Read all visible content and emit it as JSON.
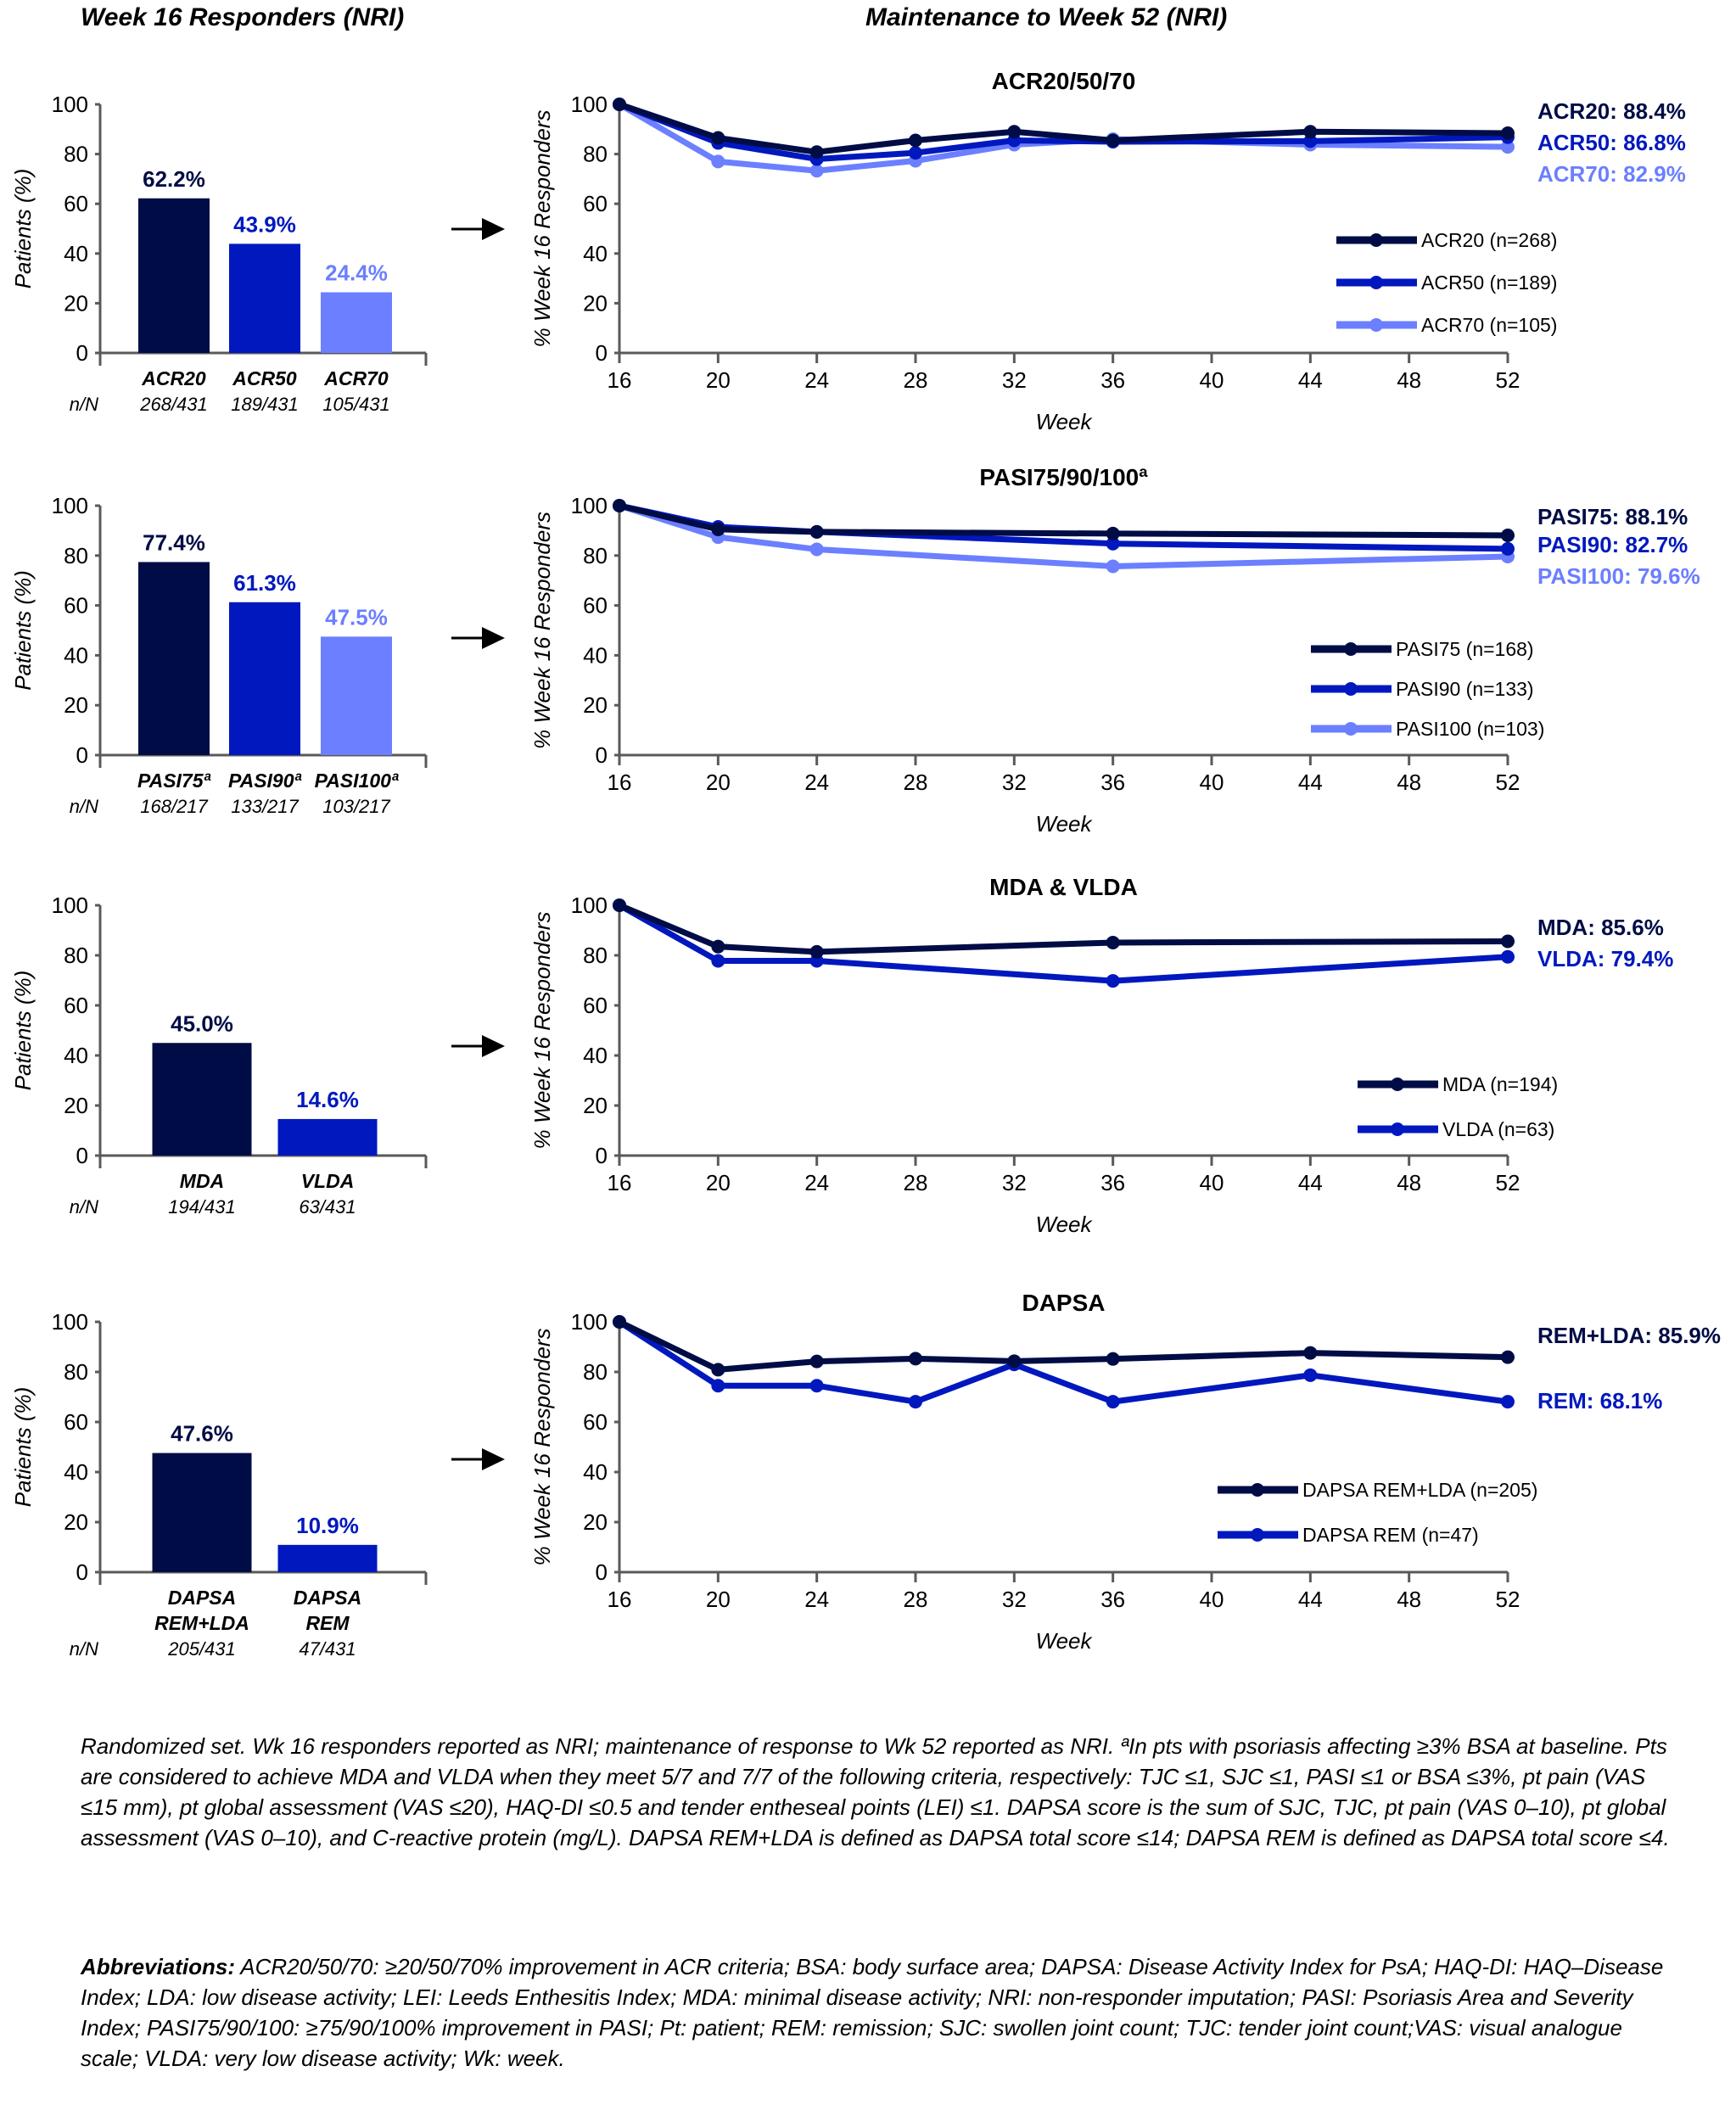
{
  "headers": {
    "left": "Week 16 Responders (NRI)",
    "right": "Maintenance to Week 52 (NRI)"
  },
  "colors": {
    "dark": "#000c45",
    "mid": "#0018be",
    "light": "#6b7fff",
    "axis": "#595959"
  },
  "chart_data": [
    {
      "type": "bar",
      "id": "bar-acr",
      "ylabel": "Patients (%)",
      "ylim": [
        0,
        100
      ],
      "yticks": [
        0,
        20,
        40,
        60,
        80,
        100
      ],
      "nN_label": "n/N",
      "categories": [
        [
          "ACR20"
        ],
        [
          "ACR50"
        ],
        [
          "ACR70"
        ]
      ],
      "values": [
        62.2,
        43.9,
        24.4
      ],
      "value_labels": [
        "62.2%",
        "43.9%",
        "24.4%"
      ],
      "nN": [
        "268/431",
        "189/431",
        "105/431"
      ],
      "color_keys": [
        "dark",
        "mid",
        "light"
      ]
    },
    {
      "type": "line",
      "id": "line-acr",
      "title": "ACR20/50/70",
      "xlabel": "Week",
      "ylabel": "% Week 16 Responders",
      "xlim": [
        16,
        52
      ],
      "ylim": [
        0,
        100
      ],
      "xticks": [
        16,
        20,
        24,
        28,
        32,
        36,
        40,
        44,
        48,
        52
      ],
      "yticks": [
        0,
        20,
        40,
        60,
        80,
        100
      ],
      "series": [
        {
          "name": "ACR20 (n=268)",
          "color_key": "dark",
          "end_label": "ACR20: 88.4%",
          "x": [
            16,
            20,
            24,
            28,
            32,
            36,
            44,
            52
          ],
          "y": [
            100,
            86.5,
            80.8,
            85.5,
            89,
            85.5,
            89,
            88.4
          ]
        },
        {
          "name": "ACR50 (n=189)",
          "color_key": "mid",
          "end_label": "ACR50: 86.8%",
          "x": [
            16,
            20,
            24,
            28,
            32,
            36,
            44,
            52
          ],
          "y": [
            100,
            84.5,
            78,
            80.5,
            85.5,
            85,
            85.2,
            86.8
          ]
        },
        {
          "name": "ACR70 (n=105)",
          "color_key": "light",
          "end_label": "ACR70: 82.9%",
          "x": [
            16,
            20,
            24,
            28,
            32,
            36,
            44,
            52
          ],
          "y": [
            100,
            77,
            73.3,
            77.3,
            83.8,
            86,
            83.8,
            82.9
          ]
        }
      ],
      "legend": "center-right"
    },
    {
      "type": "bar",
      "id": "bar-pasi",
      "ylabel": "Patients (%)",
      "ylim": [
        0,
        100
      ],
      "yticks": [
        0,
        20,
        40,
        60,
        80,
        100
      ],
      "nN_label": "n/N",
      "categories": [
        [
          "PASI75ª"
        ],
        [
          "PASI90ª"
        ],
        [
          "PASI100ª"
        ]
      ],
      "values": [
        77.4,
        61.3,
        47.5
      ],
      "value_labels": [
        "77.4%",
        "61.3%",
        "47.5%"
      ],
      "nN": [
        "168/217",
        "133/217",
        "103/217"
      ],
      "color_keys": [
        "dark",
        "mid",
        "light"
      ]
    },
    {
      "type": "line",
      "id": "line-pasi",
      "title": "PASI75/90/100ª",
      "xlabel": "Week",
      "ylabel": "% Week 16 Responders",
      "xlim": [
        16,
        52
      ],
      "ylim": [
        0,
        100
      ],
      "xticks": [
        16,
        20,
        24,
        28,
        32,
        36,
        40,
        44,
        48,
        52
      ],
      "yticks": [
        0,
        20,
        40,
        60,
        80,
        100
      ],
      "series": [
        {
          "name": "PASI75 (n=168)",
          "color_key": "dark",
          "end_label": "PASI75: 88.1%",
          "x": [
            16,
            20,
            24,
            36,
            52
          ],
          "y": [
            100,
            90.5,
            89.5,
            88.8,
            88.1
          ]
        },
        {
          "name": "PASI90 (n=133)",
          "color_key": "mid",
          "end_label": "PASI90: 82.7%",
          "x": [
            16,
            20,
            24,
            36,
            52
          ],
          "y": [
            100,
            91.5,
            89.5,
            84.8,
            82.7
          ]
        },
        {
          "name": "PASI100 (n=103)",
          "color_key": "light",
          "end_label": "PASI100: 79.6%",
          "x": [
            16,
            20,
            24,
            36,
            52
          ],
          "y": [
            100,
            87.4,
            82.5,
            75.7,
            79.6
          ]
        }
      ],
      "legend": "center-right"
    },
    {
      "type": "bar",
      "id": "bar-mda",
      "ylabel": "Patients (%)",
      "ylim": [
        0,
        100
      ],
      "yticks": [
        0,
        20,
        40,
        60,
        80,
        100
      ],
      "nN_label": "n/N",
      "categories": [
        [
          "MDA"
        ],
        [
          "VLDA"
        ]
      ],
      "values": [
        45.0,
        14.6
      ],
      "value_labels": [
        "45.0%",
        "14.6%"
      ],
      "nN": [
        "194/431",
        "63/431"
      ],
      "color_keys": [
        "dark",
        "mid"
      ]
    },
    {
      "type": "line",
      "id": "line-mda",
      "title": "MDA & VLDA",
      "xlabel": "Week",
      "ylabel": "% Week 16 Responders",
      "xlim": [
        16,
        52
      ],
      "ylim": [
        0,
        100
      ],
      "xticks": [
        16,
        20,
        24,
        28,
        32,
        36,
        40,
        44,
        48,
        52
      ],
      "yticks": [
        0,
        20,
        40,
        60,
        80,
        100
      ],
      "series": [
        {
          "name": "MDA (n=194)",
          "color_key": "dark",
          "end_label": "MDA: 85.6%",
          "x": [
            16,
            20,
            24,
            36,
            52
          ],
          "y": [
            100,
            83.5,
            81.4,
            85.1,
            85.6
          ]
        },
        {
          "name": "VLDA (n=63)",
          "color_key": "mid",
          "end_label": "VLDA: 79.4%",
          "x": [
            16,
            20,
            24,
            36,
            52
          ],
          "y": [
            100,
            77.8,
            77.8,
            69.8,
            79.4
          ]
        }
      ],
      "legend": "center-right"
    },
    {
      "type": "bar",
      "id": "bar-dapsa",
      "ylabel": "Patients (%)",
      "ylim": [
        0,
        100
      ],
      "yticks": [
        0,
        20,
        40,
        60,
        80,
        100
      ],
      "nN_label": "n/N",
      "categories": [
        [
          "DAPSA",
          "REM+LDA"
        ],
        [
          "DAPSA",
          "REM"
        ]
      ],
      "values": [
        47.6,
        10.9
      ],
      "value_labels": [
        "47.6%",
        "10.9%"
      ],
      "nN": [
        "205/431",
        "47/431"
      ],
      "color_keys": [
        "dark",
        "mid"
      ]
    },
    {
      "type": "line",
      "id": "line-dapsa",
      "title": "DAPSA",
      "xlabel": "Week",
      "ylabel": "% Week 16 Responders",
      "xlim": [
        16,
        52
      ],
      "ylim": [
        0,
        100
      ],
      "xticks": [
        16,
        20,
        24,
        28,
        32,
        36,
        40,
        44,
        48,
        52
      ],
      "yticks": [
        0,
        20,
        40,
        60,
        80,
        100
      ],
      "series": [
        {
          "name": "DAPSA REM+LDA (n=205)",
          "color_key": "dark",
          "end_label": "REM+LDA: 85.9%",
          "x": [
            16,
            20,
            24,
            28,
            32,
            36,
            44,
            52
          ],
          "y": [
            100,
            80.9,
            84.2,
            85.3,
            84.3,
            85.2,
            87.6,
            85.9
          ]
        },
        {
          "name": "DAPSA REM (n=47)",
          "color_key": "mid",
          "end_label": "REM: 68.1%",
          "x": [
            16,
            20,
            24,
            28,
            32,
            36,
            44,
            52
          ],
          "y": [
            100,
            74.5,
            74.5,
            68.1,
            83,
            68.1,
            78.7,
            68.1
          ]
        }
      ],
      "legend": "center-right"
    }
  ],
  "footnote": "Randomized set. Wk 16 responders reported as NRI; maintenance of response to Wk 52 reported as NRI. ªIn pts with psoriasis affecting ≥3% BSA at baseline. Pts are considered to achieve MDA and VLDA when they meet 5/7 and 7/7 of the following criteria, respectively: TJC ≤1, SJC ≤1, PASI ≤1 or BSA ≤3%, pt pain (VAS ≤15 mm), pt global assessment (VAS ≤20), HAQ-DI ≤0.5 and tender entheseal points (LEI) ≤1. DAPSA score is the sum of SJC, TJC, pt pain (VAS 0–10), pt global assessment (VAS 0–10), and C-reactive protein (mg/L). DAPSA REM+LDA is defined as DAPSA total score ≤14; DAPSA REM is defined as DAPSA total score ≤4.",
  "abbreviations": {
    "label": "Abbreviations:",
    "text": " ACR20/50/70: ≥20/50/70% improvement in ACR criteria; BSA: body surface area; DAPSA: Disease Activity Index for PsA; HAQ-DI: HAQ–Disease Index; LDA: low disease activity; LEI: Leeds Enthesitis Index; MDA: minimal disease activity; NRI: non-responder imputation; PASI: Psoriasis Area and Severity Index; PASI75/90/100: ≥75/90/100% improvement in PASI; Pt: patient; REM: remission; SJC: swollen joint count; TJC: tender joint count;VAS: visual analogue scale; VLDA: very low disease activity; Wk: week."
  }
}
